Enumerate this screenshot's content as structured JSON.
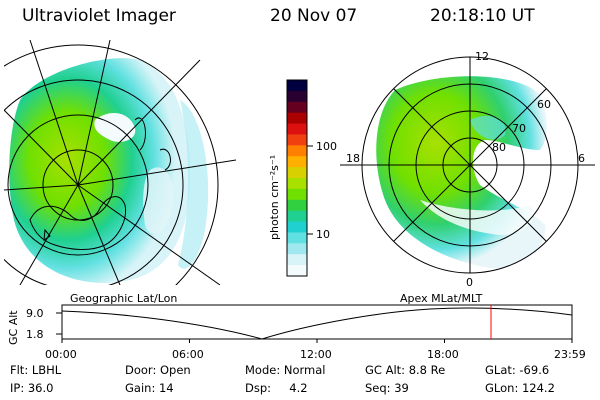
{
  "header": {
    "instrument": "Ultraviolet Imager",
    "date": "20 Nov 07",
    "time": "20:18:10 UT"
  },
  "left_panel": {
    "caption": "Geographic Lat/Lon"
  },
  "right_panel": {
    "caption": "Apex  MLat/MLT",
    "mlt_labels": [
      "12",
      "18",
      "6",
      "0"
    ],
    "mlat_labels": [
      "60",
      "70",
      "80"
    ]
  },
  "colorbar": {
    "label": "photon cm⁻²s⁻¹",
    "ticks": [
      "100",
      "10"
    ],
    "colors": [
      "#000040",
      "#2a0030",
      "#660020",
      "#aa0000",
      "#dd1010",
      "#f04010",
      "#ff8000",
      "#ffb000",
      "#d8d000",
      "#a8e000",
      "#70e000",
      "#30d040",
      "#20d090",
      "#20d0d0",
      "#60e0e0",
      "#a0e8f0",
      "#d8f4f8",
      "#f4fbfc"
    ]
  },
  "altitude_plot": {
    "ylabel": "GC Alt",
    "yticks": [
      "9.0",
      "1.8"
    ],
    "xticks": [
      "00:00",
      "06:00",
      "12:00",
      "18:00",
      "23:59"
    ],
    "marker_color": "#ff0000"
  },
  "footer": {
    "flt": "Flt: LBHL",
    "ip": "IP: 36.0",
    "door": "Door: Open",
    "gain": "Gain: 14",
    "mode": "Mode: Normal",
    "dsp": "Dsp:     4.2",
    "gcalt": "GC Alt: 8.8 Re",
    "seq": "Seq: 39",
    "glat": "GLat: -69.6",
    "glon": "GLon: 124.2"
  }
}
